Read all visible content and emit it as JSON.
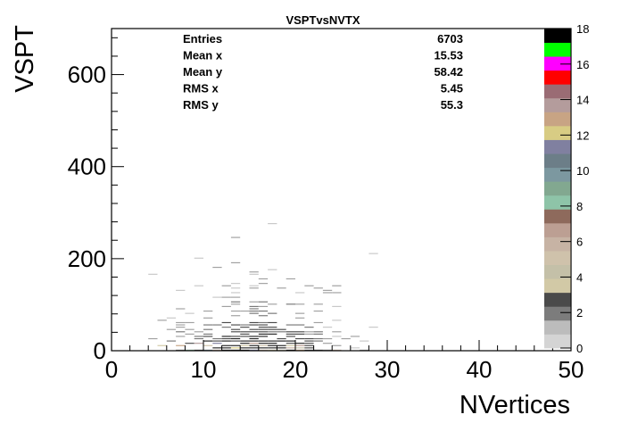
{
  "chart_data": {
    "type": "heatmap",
    "title": "VSPTvsNVTX",
    "xlabel": "NVertices",
    "ylabel": "VSPT",
    "xlim": [
      0,
      50
    ],
    "ylim": [
      0,
      700
    ],
    "x_ticks": [
      "0",
      "10",
      "20",
      "30",
      "40",
      "50"
    ],
    "y_ticks": [
      "0",
      "200",
      "400",
      "600"
    ],
    "z_ticks": [
      "0",
      "2",
      "4",
      "6",
      "8",
      "10",
      "12",
      "14",
      "16",
      "18"
    ],
    "zlim": [
      0,
      18
    ],
    "stats": [
      {
        "label": "Entries",
        "value": "6703"
      },
      {
        "label": "Mean x",
        "value": "15.53"
      },
      {
        "label": "Mean y",
        "value": "58.42"
      },
      {
        "label": "RMS x",
        "value": "5.45"
      },
      {
        "label": "RMS y",
        "value": "55.3"
      }
    ],
    "summary": {
      "entries": 6703,
      "mean_x": 15.53,
      "mean_y": 58.42,
      "rms_x": 5.45,
      "rms_y": 55.3
    },
    "palette": [
      "#d4d4d4",
      "#bcbcbc",
      "#7c7c7c",
      "#4a4a4a",
      "#d2c9a6",
      "#c4c0a8",
      "#cfc2ab",
      "#c7b3a4",
      "#bc9f93",
      "#8e6a5c",
      "#8ec4a8",
      "#82a890",
      "#7c98a0",
      "#6c7e88",
      "#8080a0",
      "#d8cc84",
      "#c8a484",
      "#b49c9c",
      "#9a6c74",
      "#ff0000",
      "#ff00ff",
      "#00ff00",
      "#000000"
    ],
    "grid": false,
    "legend": "none"
  }
}
